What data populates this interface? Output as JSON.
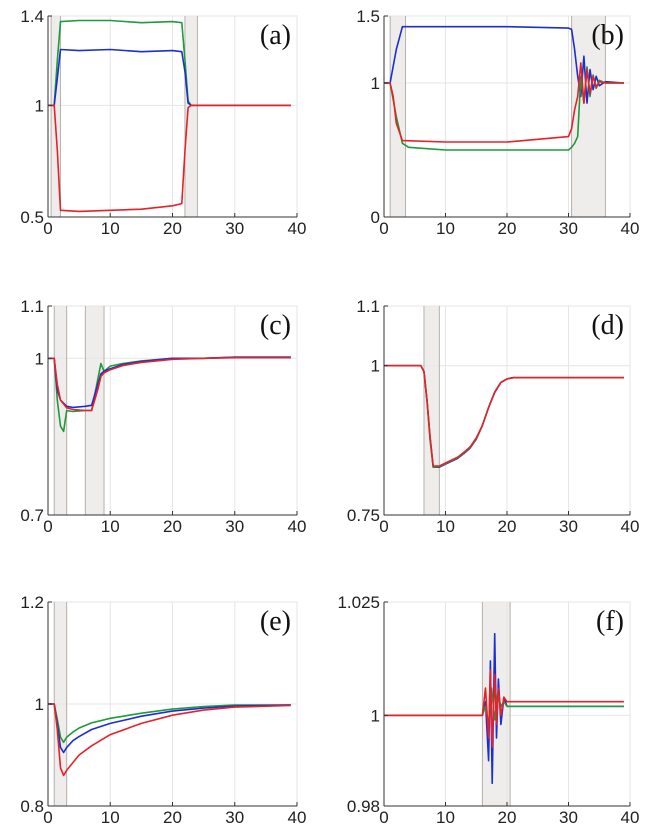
{
  "colors": {
    "blue": "#1b2fd0",
    "green": "#1f9a3a",
    "red": "#e8202a",
    "band": "#e8e5e2"
  },
  "chart_data": [
    {
      "id": "a",
      "type": "line",
      "panel_label": "(a)",
      "xlim": [
        0,
        40
      ],
      "ylim": [
        0.5,
        1.4
      ],
      "xticks": [
        0,
        10,
        20,
        30,
        40
      ],
      "xtick_labels": [
        "0",
        "10",
        "20",
        "30",
        "40"
      ],
      "yticks": [
        0.5,
        1,
        1.4
      ],
      "ytick_labels": [
        "0.5",
        "1",
        "1.4"
      ],
      "shaded_regions": [
        [
          0.5,
          2
        ],
        [
          22,
          24
        ]
      ],
      "series": [
        {
          "color": "green",
          "x": [
            0,
            1,
            1.5,
            2,
            5,
            10,
            15,
            20,
            21.5,
            22,
            22.5,
            23,
            24,
            30,
            39
          ],
          "y": [
            1,
            1,
            1.2,
            1.375,
            1.38,
            1.38,
            1.37,
            1.375,
            1.37,
            1.2,
            1.02,
            1,
            1,
            1,
            1
          ]
        },
        {
          "color": "blue",
          "x": [
            0,
            1,
            1.5,
            2,
            5,
            10,
            15,
            20,
            21.5,
            22,
            22.5,
            23,
            24,
            30,
            39
          ],
          "y": [
            1,
            1,
            1.12,
            1.25,
            1.245,
            1.25,
            1.24,
            1.245,
            1.24,
            1.15,
            1.01,
            1,
            1,
            1,
            1
          ]
        },
        {
          "color": "red",
          "x": [
            0,
            1,
            1.5,
            2,
            5,
            10,
            15,
            20,
            21.5,
            22,
            22.5,
            23,
            24,
            30,
            39
          ],
          "y": [
            1,
            1,
            0.8,
            0.53,
            0.525,
            0.53,
            0.535,
            0.55,
            0.56,
            0.8,
            0.99,
            1,
            1,
            1,
            1
          ]
        }
      ]
    },
    {
      "id": "b",
      "type": "line",
      "panel_label": "(b)",
      "xlim": [
        0,
        40
      ],
      "ylim": [
        0,
        1.5
      ],
      "xticks": [
        0,
        10,
        20,
        30,
        40
      ],
      "xtick_labels": [
        "0",
        "10",
        "20",
        "30",
        "40"
      ],
      "yticks": [
        0,
        1,
        1.5
      ],
      "ytick_labels": [
        "0",
        "1",
        "1.5"
      ],
      "shaded_regions": [
        [
          1,
          3.5
        ],
        [
          30.5,
          36
        ]
      ],
      "series": [
        {
          "color": "blue",
          "x": [
            0,
            1,
            2,
            3,
            10,
            20,
            30,
            30.5,
            31,
            31.5,
            32,
            32.5,
            33,
            33.5,
            34,
            34.5,
            35,
            36,
            39
          ],
          "y": [
            1,
            1,
            1.25,
            1.42,
            1.42,
            1.42,
            1.41,
            1.4,
            1.25,
            1.05,
            0.9,
            1.2,
            0.85,
            1.1,
            0.95,
            1.05,
            0.98,
            1.01,
            1
          ]
        },
        {
          "color": "green",
          "x": [
            0,
            1,
            2,
            3,
            4,
            10,
            20,
            30,
            30.5,
            31,
            31.5,
            32,
            32.5,
            33,
            33.5,
            34,
            34.5,
            35,
            36,
            39
          ],
          "y": [
            1,
            1,
            0.75,
            0.55,
            0.52,
            0.5,
            0.5,
            0.5,
            0.52,
            0.55,
            0.6,
            1.05,
            0.85,
            1.12,
            0.9,
            1.06,
            0.96,
            1.02,
            1,
            1
          ]
        },
        {
          "color": "red",
          "x": [
            0,
            1,
            1.5,
            2,
            3,
            10,
            20,
            25,
            30,
            30.5,
            31,
            31.5,
            32,
            32.5,
            33,
            33.5,
            34,
            34.5,
            35,
            36,
            39
          ],
          "y": [
            1,
            1,
            0.9,
            0.7,
            0.57,
            0.56,
            0.56,
            0.58,
            0.6,
            0.66,
            0.8,
            0.9,
            1.15,
            0.85,
            1.1,
            0.92,
            1.05,
            0.97,
            1.01,
            1,
            1
          ]
        }
      ]
    },
    {
      "id": "c",
      "type": "line",
      "panel_label": "(c)",
      "xlim": [
        0,
        40
      ],
      "ylim": [
        0.7,
        1.1
      ],
      "xticks": [
        0,
        10,
        20,
        30,
        40
      ],
      "xtick_labels": [
        "0",
        "10",
        "20",
        "30",
        "40"
      ],
      "yticks": [
        0.7,
        1,
        1.1
      ],
      "ytick_labels": [
        "0.7",
        "1",
        "1.1"
      ],
      "shaded_regions": [
        [
          1,
          3
        ],
        [
          6,
          9
        ]
      ],
      "series": [
        {
          "color": "green",
          "x": [
            0,
            1,
            1.5,
            2,
            2.5,
            3,
            4,
            6,
            7,
            8,
            8.5,
            9,
            10,
            12,
            15,
            20,
            25,
            30,
            39
          ],
          "y": [
            1,
            1,
            0.92,
            0.87,
            0.86,
            0.9,
            0.898,
            0.9,
            0.9,
            0.96,
            0.99,
            0.975,
            0.985,
            0.99,
            0.995,
            1,
            1,
            1.002,
            1.002
          ]
        },
        {
          "color": "blue",
          "x": [
            0,
            1,
            1.5,
            2,
            3,
            4,
            6,
            7,
            8,
            8.5,
            9,
            10,
            12,
            15,
            20,
            25,
            30,
            39
          ],
          "y": [
            1,
            1,
            0.94,
            0.92,
            0.908,
            0.906,
            0.908,
            0.91,
            0.95,
            0.97,
            0.975,
            0.98,
            0.988,
            0.994,
            1,
            1,
            1.002,
            1.002
          ]
        },
        {
          "color": "red",
          "x": [
            0,
            1,
            1.5,
            2,
            3,
            4,
            6,
            7,
            8,
            8.5,
            9,
            10,
            12,
            15,
            20,
            25,
            30,
            39
          ],
          "y": [
            1,
            1,
            0.95,
            0.92,
            0.905,
            0.902,
            0.9,
            0.9,
            0.94,
            0.965,
            0.972,
            0.978,
            0.986,
            0.992,
            0.998,
            1,
            1.001,
            1.001
          ]
        }
      ]
    },
    {
      "id": "d",
      "type": "line",
      "panel_label": "(d)",
      "xlim": [
        0,
        40
      ],
      "ylim": [
        0.75,
        1.1
      ],
      "xticks": [
        0,
        10,
        20,
        30,
        40
      ],
      "xtick_labels": [
        "0",
        "10",
        "20",
        "30",
        "40"
      ],
      "yticks": [
        0.75,
        1,
        1.1
      ],
      "ytick_labels": [
        "0.75",
        "1",
        "1.1"
      ],
      "shaded_regions": [
        [
          6.5,
          9
        ]
      ],
      "series": [
        {
          "color": "blue",
          "x": [
            0,
            6,
            6.5,
            7,
            7.5,
            8,
            9,
            10,
            12,
            13,
            14,
            15,
            16,
            17,
            18,
            19,
            20,
            21,
            25,
            30,
            39
          ],
          "y": [
            1,
            1,
            0.99,
            0.94,
            0.88,
            0.83,
            0.83,
            0.835,
            0.845,
            0.853,
            0.862,
            0.877,
            0.9,
            0.93,
            0.955,
            0.972,
            0.978,
            0.98,
            0.98,
            0.98,
            0.98
          ]
        },
        {
          "color": "green",
          "x": [
            0,
            6,
            6.5,
            7,
            7.5,
            8,
            9,
            10,
            12,
            13,
            14,
            15,
            16,
            17,
            18,
            19,
            20,
            21,
            25,
            30,
            39
          ],
          "y": [
            1,
            1,
            0.99,
            0.94,
            0.875,
            0.83,
            0.831,
            0.836,
            0.846,
            0.854,
            0.863,
            0.878,
            0.9,
            0.93,
            0.956,
            0.972,
            0.978,
            0.98,
            0.98,
            0.98,
            0.98
          ]
        },
        {
          "color": "red",
          "x": [
            0,
            6,
            6.5,
            7,
            7.5,
            8,
            9,
            10,
            12,
            13,
            14,
            15,
            16,
            17,
            18,
            19,
            20,
            21,
            25,
            30,
            39
          ],
          "y": [
            1,
            1,
            0.99,
            0.94,
            0.88,
            0.832,
            0.832,
            0.837,
            0.847,
            0.855,
            0.864,
            0.879,
            0.9,
            0.93,
            0.956,
            0.972,
            0.978,
            0.98,
            0.98,
            0.98,
            0.98
          ]
        }
      ]
    },
    {
      "id": "e",
      "type": "line",
      "panel_label": "(e)",
      "xlim": [
        0,
        40
      ],
      "ylim": [
        0.8,
        1.2
      ],
      "xticks": [
        0,
        10,
        20,
        30,
        40
      ],
      "xtick_labels": [
        "0",
        "10",
        "20",
        "30",
        "40"
      ],
      "yticks": [
        0.8,
        1,
        1.2
      ],
      "ytick_labels": [
        "0.8",
        "1",
        "1.2"
      ],
      "shaded_regions": [
        [
          1,
          3
        ]
      ],
      "series": [
        {
          "color": "green",
          "x": [
            0,
            1,
            1.5,
            2,
            2.5,
            3,
            4,
            5,
            7,
            10,
            15,
            20,
            25,
            30,
            39
          ],
          "y": [
            1,
            1,
            0.97,
            0.935,
            0.925,
            0.935,
            0.945,
            0.953,
            0.963,
            0.972,
            0.982,
            0.99,
            0.995,
            0.998,
            0.998
          ]
        },
        {
          "color": "blue",
          "x": [
            0,
            1,
            1.5,
            2,
            2.5,
            3,
            4,
            5,
            7,
            10,
            15,
            20,
            25,
            30,
            39
          ],
          "y": [
            1,
            1,
            0.96,
            0.915,
            0.905,
            0.915,
            0.928,
            0.936,
            0.95,
            0.962,
            0.976,
            0.986,
            0.992,
            0.996,
            0.998
          ]
        },
        {
          "color": "red",
          "x": [
            0,
            1,
            1.5,
            2,
            2.5,
            3,
            4,
            5,
            7,
            10,
            15,
            20,
            25,
            30,
            39
          ],
          "y": [
            1,
            1,
            0.95,
            0.875,
            0.86,
            0.87,
            0.885,
            0.9,
            0.918,
            0.94,
            0.962,
            0.978,
            0.988,
            0.994,
            0.997
          ]
        }
      ]
    },
    {
      "id": "f",
      "type": "line",
      "panel_label": "(f)",
      "xlim": [
        0,
        40
      ],
      "ylim": [
        0.98,
        1.025
      ],
      "xticks": [
        0,
        10,
        20,
        30,
        40
      ],
      "xtick_labels": [
        "0",
        "10",
        "20",
        "30",
        "40"
      ],
      "yticks": [
        0.98,
        1,
        1.025
      ],
      "ytick_labels": [
        "0.98",
        "1",
        "1.025"
      ],
      "shaded_regions": [
        [
          16,
          20.5
        ]
      ],
      "series": [
        {
          "color": "blue",
          "x": [
            0,
            16,
            16.5,
            17,
            17.3,
            17.6,
            18,
            18.3,
            18.6,
            19,
            19.5,
            20,
            21,
            25,
            30,
            39
          ],
          "y": [
            1,
            1,
            1.003,
            0.99,
            1.012,
            0.985,
            1.018,
            0.995,
            1.008,
            0.998,
            1.004,
            1.002,
            1.002,
            1.002,
            1.002,
            1.002
          ]
        },
        {
          "color": "green",
          "x": [
            0,
            16,
            16.5,
            17,
            17.5,
            18,
            18.5,
            19,
            19.5,
            20,
            21,
            25,
            30,
            39
          ],
          "y": [
            1,
            1,
            1.002,
            0.998,
            1.006,
            0.999,
            1.005,
            1.002,
            1.003,
            1.002,
            1.002,
            1.002,
            1.002,
            1.002
          ]
        },
        {
          "color": "red",
          "x": [
            0,
            16,
            16.5,
            17,
            17.3,
            17.6,
            18,
            18.3,
            18.6,
            19,
            19.5,
            20,
            21,
            25,
            30,
            39
          ],
          "y": [
            1,
            1,
            1.006,
            0.995,
            1.01,
            0.993,
            1.009,
            0.998,
            1.006,
            1.0,
            1.004,
            1.003,
            1.003,
            1.003,
            1.003,
            1.003
          ]
        }
      ]
    }
  ]
}
